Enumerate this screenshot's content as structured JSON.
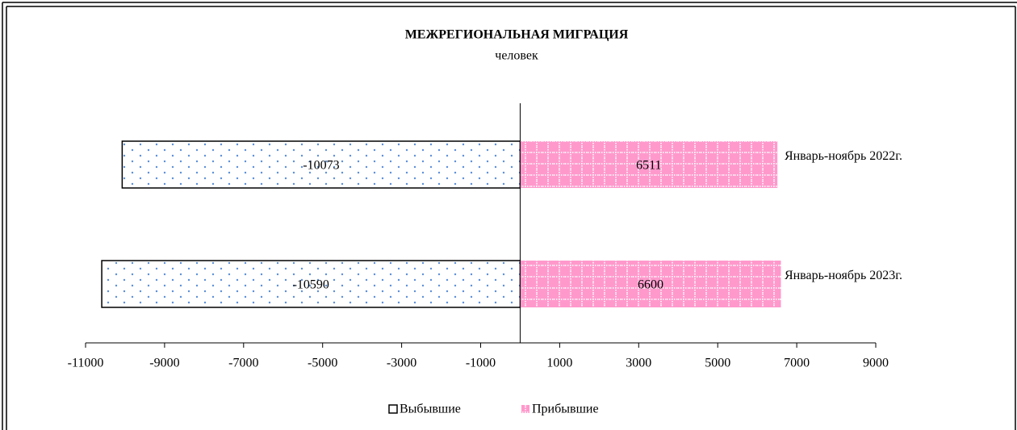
{
  "chart_data": {
    "type": "hbar",
    "title": "МЕЖРЕГИОНАЛЬНАЯ МИГРАЦИЯ",
    "subtitle": "человек",
    "categories": [
      "Январь-ноябрь 2022г.",
      "Январь-ноябрь 2023г."
    ],
    "series": [
      {
        "name": "Выбывшие",
        "color": "#ffffff",
        "values": [
          -10073,
          -10590
        ]
      },
      {
        "name": "Прибывшие",
        "color": "#ff99cc",
        "values": [
          6511,
          6600
        ]
      }
    ],
    "xlim": [
      -11000,
      9000
    ],
    "xticks": [
      -11000,
      -9000,
      -7000,
      -5000,
      -3000,
      -1000,
      1000,
      3000,
      5000,
      7000,
      9000
    ],
    "legend": "bottom"
  }
}
